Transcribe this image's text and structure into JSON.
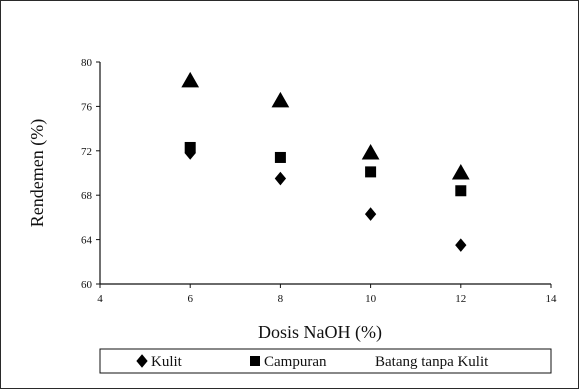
{
  "chart_data": {
    "type": "scatter",
    "title": "",
    "xlabel": "Dosis NaOH (%)",
    "ylabel": "Rendemen (%)",
    "xlim": [
      4,
      14
    ],
    "ylim": [
      60,
      80
    ],
    "xticks": [
      4,
      6,
      8,
      10,
      12,
      14
    ],
    "yticks": [
      60,
      64,
      68,
      72,
      76,
      80
    ],
    "grid": false,
    "legend_position": "bottom",
    "series": [
      {
        "name": "Kulit",
        "marker": "diamond",
        "x": [
          6,
          8,
          10,
          12
        ],
        "y": [
          71.8,
          69.5,
          66.3,
          63.5
        ]
      },
      {
        "name": "Campuran",
        "marker": "square",
        "x": [
          6,
          8,
          10,
          12
        ],
        "y": [
          72.3,
          71.4,
          70.1,
          68.4
        ]
      },
      {
        "name": "Batang tanpa Kulit",
        "marker": "triangle",
        "x": [
          6,
          8,
          10,
          12
        ],
        "y": [
          78.3,
          76.5,
          71.8,
          70.0
        ]
      }
    ],
    "colors": {
      "marker": "#000000",
      "axis": "#111111",
      "background": "#ffffff"
    }
  }
}
